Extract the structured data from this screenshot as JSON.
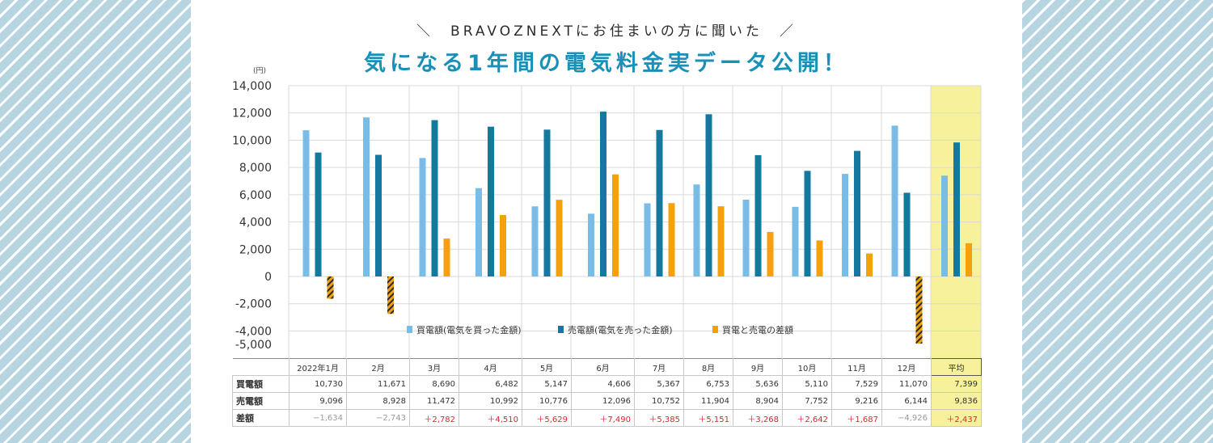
{
  "header": {
    "subtitle": "＼　BRAVOZNEXTにお住まいの方に聞いた　／",
    "title": "気になる1年間の電気料金実データ公開！"
  },
  "colors": {
    "buy": "#79bde6",
    "sell": "#14789f",
    "diff": "#f4a10b",
    "avg_highlight": "#f6f19a",
    "positive_text": "#e0242f",
    "background_stripes": "#b6d5e1"
  },
  "chart_data": {
    "type": "bar",
    "y_unit": "(円)",
    "ylim": [
      -5000,
      14000
    ],
    "y_ticks": [
      "14,000",
      "12,000",
      "10,000",
      "8,000",
      "6,000",
      "4,000",
      "2,000",
      "0",
      "-2,000",
      "-4,000",
      "-5,000"
    ],
    "grid": true,
    "legend_position": "bottom-center",
    "categories": [
      "2022年1月",
      "2月",
      "3月",
      "4月",
      "5月",
      "6月",
      "7月",
      "8月",
      "9月",
      "10月",
      "11月",
      "12月",
      "平均"
    ],
    "series": [
      {
        "name": "買電額(電気を買った金額)",
        "values": [
          10730,
          11671,
          8690,
          6482,
          5147,
          4606,
          5367,
          6753,
          5636,
          5110,
          7529,
          11070,
          7399
        ]
      },
      {
        "name": "売電額(電気を売った金額)",
        "values": [
          9096,
          8928,
          11472,
          10992,
          10776,
          12096,
          10752,
          11904,
          8904,
          7752,
          9216,
          6144,
          9836
        ]
      },
      {
        "name": "買電と売電の差額",
        "values": [
          -1634,
          -2743,
          2782,
          4510,
          5629,
          7490,
          5385,
          5151,
          3268,
          2642,
          1687,
          -4926,
          2437
        ]
      }
    ],
    "negative_bars_hatched": true
  },
  "table": {
    "rows": [
      {
        "label": "買電額",
        "cells": [
          "10,730",
          "11,671",
          "8,690",
          "6,482",
          "5,147",
          "4,606",
          "5,367",
          "6,753",
          "5,636",
          "5,110",
          "7,529",
          "11,070",
          "7,399"
        ]
      },
      {
        "label": "売電額",
        "cells": [
          "9,096",
          "8,928",
          "11,472",
          "10,992",
          "10,776",
          "12,096",
          "10,752",
          "11,904",
          "8,904",
          "7,752",
          "9,216",
          "6,144",
          "9,836"
        ]
      },
      {
        "label": "差額",
        "cells": [
          "−1,634",
          "−2,743",
          "＋2,782",
          "＋4,510",
          "＋5,629",
          "＋7,490",
          "＋5,385",
          "＋5,151",
          "＋3,268",
          "＋2,642",
          "＋1,687",
          "−4,926",
          "＋2,437"
        ]
      }
    ]
  }
}
